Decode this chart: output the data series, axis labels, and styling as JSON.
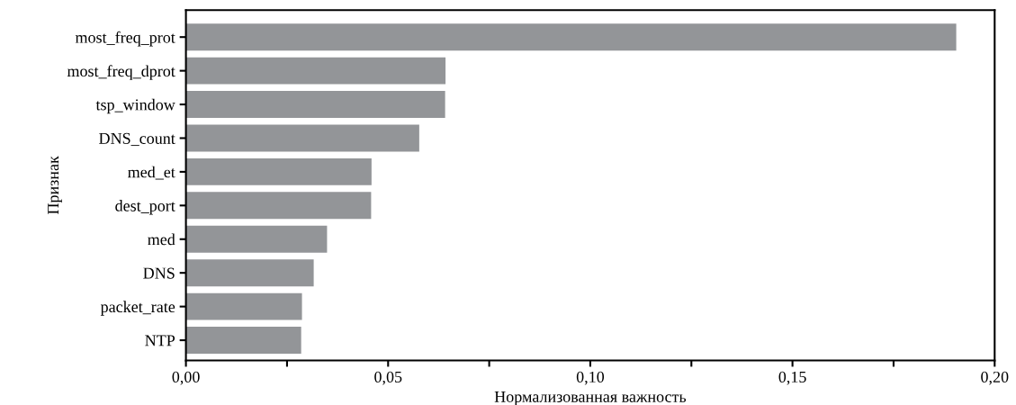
{
  "chart_data": {
    "type": "bar",
    "orientation": "horizontal",
    "xlabel": "Нормализованная важность",
    "ylabel": "Признак",
    "categories": [
      "most_freq_prot",
      "most_freq_dprot",
      "tsp_window",
      "DNS_count",
      "med_et",
      "dest_port",
      "med",
      "DNS",
      "packet_rate",
      "NTP"
    ],
    "values": [
      0.1905,
      0.0642,
      0.0641,
      0.0577,
      0.0459,
      0.0458,
      0.0349,
      0.0316,
      0.0287,
      0.0285
    ],
    "color": "#939598",
    "xlim": [
      0,
      0.2
    ],
    "xticks": [
      {
        "value": 0,
        "label": "0,00"
      },
      {
        "value": 0.025,
        "label": null
      },
      {
        "value": 0.05,
        "label": "0,05"
      },
      {
        "value": 0.075,
        "label": null
      },
      {
        "value": 0.1,
        "label": "0,10"
      },
      {
        "value": 0.125,
        "label": null
      },
      {
        "value": 0.15,
        "label": "0,15"
      },
      {
        "value": 0.175,
        "label": null
      },
      {
        "value": 0.2,
        "label": "0,20"
      }
    ],
    "grid": false,
    "legend": false
  }
}
